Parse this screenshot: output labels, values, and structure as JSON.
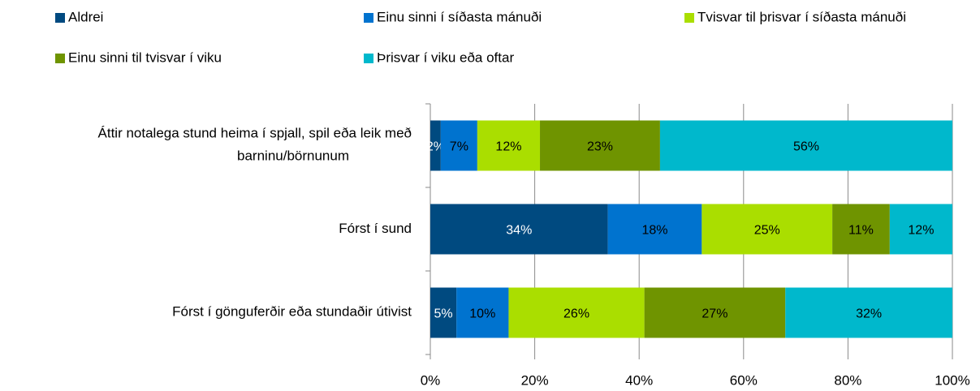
{
  "chart_data": {
    "type": "stacked_barh",
    "categories": [
      "Áttir notalega stund heima í spjall, spil eða leik með barninu/börnunum",
      "Fórst í sund",
      "Fórst í gönguferðir eða stundaðir útivist"
    ],
    "series": [
      {
        "name": "Aldrei",
        "color": "#004a80",
        "values": [
          2,
          34,
          5
        ],
        "value_labels": [
          "2%",
          "34%",
          "5%"
        ]
      },
      {
        "name": "Einu sinni í síðasta mánuði",
        "color": "#0073cf",
        "values": [
          7,
          18,
          10
        ],
        "value_labels": [
          "7%",
          "18%",
          "10%"
        ]
      },
      {
        "name": "Tvisvar til þrisvar í síðasta mánuði",
        "color": "#aade00",
        "values": [
          12,
          25,
          26
        ],
        "value_labels": [
          "12%",
          "25%",
          "26%"
        ]
      },
      {
        "name": "Einu sinni til tvisvar í viku",
        "color": "#6f9400",
        "values": [
          23,
          11,
          27
        ],
        "value_labels": [
          "23%",
          "11%",
          "27%"
        ]
      },
      {
        "name": "Þrisvar í viku eða oftar",
        "color": "#00b8cc",
        "values": [
          56,
          12,
          32
        ],
        "value_labels": [
          "56%",
          "12%",
          "32%"
        ]
      }
    ],
    "xlim": [
      0,
      100
    ],
    "xticks": [
      {
        "value": 0,
        "label": "0%"
      },
      {
        "value": 20,
        "label": "20%"
      },
      {
        "value": 40,
        "label": "40%"
      },
      {
        "value": 60,
        "label": "60%"
      },
      {
        "value": 80,
        "label": "80%"
      },
      {
        "value": 100,
        "label": "100%"
      }
    ],
    "grid": true,
    "legend": "top"
  }
}
